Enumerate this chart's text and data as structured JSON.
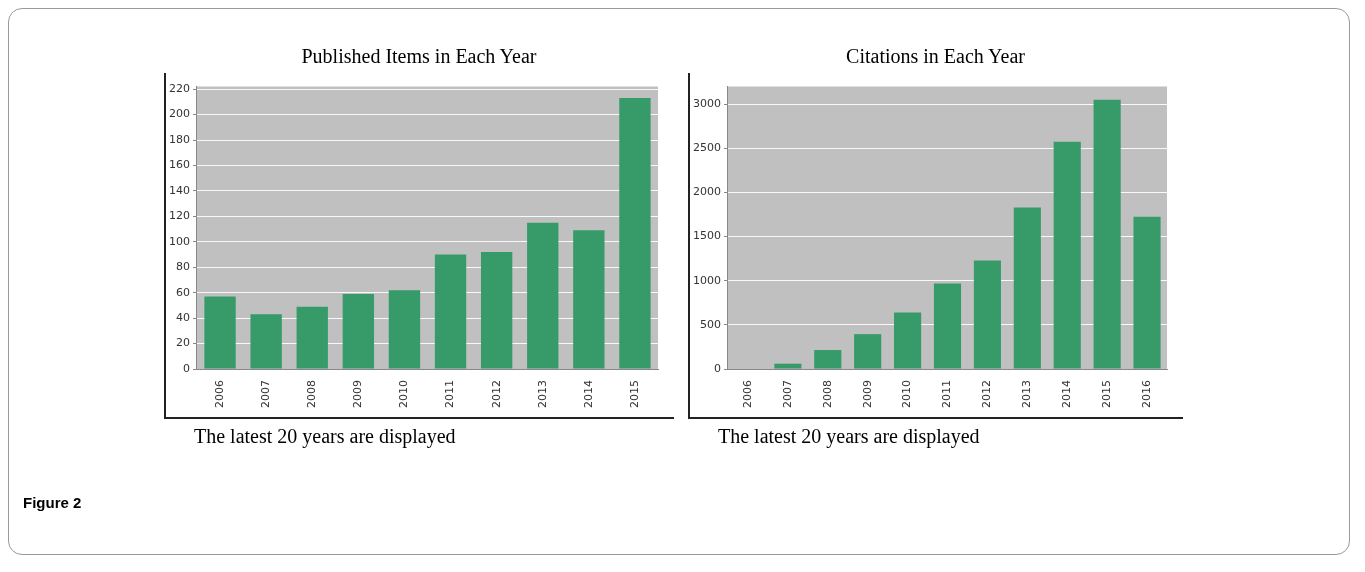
{
  "chart_data": [
    {
      "type": "bar",
      "title": "Published Items in Each Year",
      "categories": [
        "2006",
        "2007",
        "2008",
        "2009",
        "2010",
        "2011",
        "2012",
        "2013",
        "2014",
        "2015"
      ],
      "values": [
        57,
        43,
        49,
        59,
        62,
        90,
        92,
        115,
        109,
        213
      ],
      "color": "#379b69",
      "ylim": [
        0,
        222
      ],
      "yticks": [
        0,
        20,
        40,
        60,
        80,
        100,
        120,
        140,
        160,
        180,
        200,
        220
      ],
      "grid": "y",
      "annotations": [
        "The latest 20 years are displayed",
        "Figure 2"
      ]
    },
    {
      "type": "bar",
      "title": "Citations in Each Year",
      "categories": [
        "2006",
        "2007",
        "2008",
        "2009",
        "2010",
        "2011",
        "2012",
        "2013",
        "2014",
        "2015",
        "2016"
      ],
      "values": [
        0,
        60,
        215,
        395,
        640,
        970,
        1230,
        1830,
        2575,
        3050,
        1725
      ],
      "color": "#379b69",
      "ylim": [
        0,
        3200
      ],
      "yticks": [
        0,
        500,
        1000,
        1500,
        2000,
        2500,
        3000
      ],
      "grid": "y",
      "annotations": [
        "The latest 20 years are displayed"
      ]
    }
  ]
}
